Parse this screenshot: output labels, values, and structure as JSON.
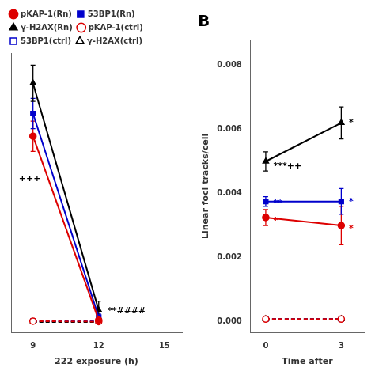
{
  "chart_data": [
    {
      "type": "line",
      "x_label": "222 exposure (h)",
      "xlim": [
        8.0,
        15.8
      ],
      "xticks": [
        9,
        12,
        15
      ],
      "ylim": [
        -0.0005,
        0.018
      ],
      "yticks": [],
      "tick_labels": "x",
      "grid": false,
      "legend": "upper left",
      "series": [
        {
          "name": "pKAP-1(Rn)",
          "color": "#dd0000",
          "line_style": "solid",
          "marker": "circle",
          "x": [
            9,
            12
          ],
          "values": [
            0.0125,
            0.00035
          ],
          "yerr_lo": [
            0.001,
            0.0002
          ],
          "yerr_hi": [
            0.001,
            0.0002
          ]
        },
        {
          "name": "53BP1(Rn)",
          "color": "#0000cc",
          "line_style": "solid",
          "marker": "square",
          "x": [
            9,
            12
          ],
          "values": [
            0.014,
            0.00055
          ],
          "yerr_lo": [
            0.001,
            0.0002
          ],
          "yerr_hi": [
            0.001,
            0.0002
          ]
        },
        {
          "name": "γ-H2AX(Rn)",
          "color": "#000000",
          "line_style": "solid",
          "marker": "triangle",
          "x": [
            9,
            12
          ],
          "values": [
            0.016,
            0.001
          ],
          "yerr_lo": [
            0.0012,
            0.0006
          ],
          "yerr_hi": [
            0.0012,
            0.0006
          ]
        },
        {
          "name": "pKAP-1(ctrl)",
          "color": "#dd0000",
          "line_style": "dashed",
          "marker": "circle",
          "x": [
            9,
            12
          ],
          "values": [
            0.00028,
            0.00025
          ],
          "yerr_lo": [
            8e-05,
            7e-05
          ],
          "yerr_hi": [
            8e-05,
            7e-05
          ]
        },
        {
          "name": "53BP1(ctrl)",
          "color": "#0000cc",
          "line_style": "dashed",
          "marker": "square",
          "x": [
            9,
            12
          ],
          "values": [
            0.00028,
            0.00028
          ],
          "yerr_lo": [
            7e-05,
            7e-05
          ],
          "yerr_hi": [
            7e-05,
            7e-05
          ]
        },
        {
          "name": "γ-H2AX(ctrl)",
          "color": "#000000",
          "line_style": "dashed",
          "marker": "triangle",
          "x": [
            9,
            12
          ],
          "values": [
            0.00022,
            0.00022
          ],
          "yerr_lo": [
            6e-05,
            6e-05
          ],
          "yerr_hi": [
            6e-05,
            6e-05
          ]
        }
      ],
      "annotations": [
        {
          "text": "**####",
          "x": 12.15,
          "y": 0.00095,
          "color": "#000000"
        },
        {
          "text": "+++",
          "x": 8.1,
          "y": 0.0097,
          "color": "#000000"
        }
      ]
    },
    {
      "type": "line",
      "title": "B",
      "x_label": "Time after",
      "y_label": "Linear foci tracks/cell",
      "xlim": [
        -0.6,
        3.9
      ],
      "xticks": [
        0,
        3
      ],
      "ylim": [
        -0.00035,
        0.0088
      ],
      "yticks": [
        {
          "value": 0,
          "label": "0.000"
        },
        0.002,
        0.004,
        0.006,
        0.008
      ],
      "grid": false,
      "series": [
        {
          "name": "pKAP-1(Rn)",
          "color": "#dd0000",
          "line_style": "solid",
          "marker": "circle",
          "x": [
            0,
            3
          ],
          "values": [
            0.00325,
            0.003
          ],
          "yerr_lo": [
            0.00025,
            0.0006
          ],
          "yerr_hi": [
            0.00025,
            0.0006
          ]
        },
        {
          "name": "53BP1(Rn)",
          "color": "#0000cc",
          "line_style": "solid",
          "marker": "square",
          "x": [
            0,
            3
          ],
          "values": [
            0.00375,
            0.00375
          ],
          "yerr_lo": [
            0.00015,
            0.0004
          ],
          "yerr_hi": [
            0.00015,
            0.0004
          ]
        },
        {
          "name": "γ-H2AX(Rn)",
          "color": "#000000",
          "line_style": "solid",
          "marker": "triangle",
          "x": [
            0,
            3
          ],
          "values": [
            0.005,
            0.0062
          ],
          "yerr_lo": [
            0.0003,
            0.0005
          ],
          "yerr_hi": [
            0.0003,
            0.0005
          ]
        },
        {
          "name": "pKAP-1(ctrl)",
          "color": "#dd0000",
          "line_style": "dashed",
          "marker": "circle",
          "x": [
            0,
            3
          ],
          "values": [
            8e-05,
            8e-05
          ],
          "yerr_lo": [
            3e-05,
            3e-05
          ],
          "yerr_hi": [
            3e-05,
            3e-05
          ]
        },
        {
          "name": "53BP1(ctrl)",
          "color": "#0000cc",
          "line_style": "dashed",
          "marker": "square",
          "x": [
            0,
            3
          ],
          "values": [
            8e-05,
            8e-05
          ],
          "yerr_lo": [
            3e-05,
            3e-05
          ],
          "yerr_hi": [
            3e-05,
            3e-05
          ]
        },
        {
          "name": "γ-H2AX(ctrl)",
          "color": "#000000",
          "line_style": "dashed",
          "marker": "triangle",
          "x": [
            0,
            3
          ],
          "values": [
            8e-05,
            8e-05
          ],
          "yerr_lo": [
            3e-05,
            3e-05
          ],
          "yerr_hi": [
            3e-05,
            3e-05
          ]
        }
      ],
      "annotations": [
        {
          "text": "***++",
          "x": 0.08,
          "y": 0.00485,
          "color": "#000000"
        },
        {
          "text": "**",
          "x": 0.08,
          "y": 0.00368,
          "color": "#0000cc"
        },
        {
          "text": "*",
          "x": 0.08,
          "y": 0.00315,
          "color": "#dd0000"
        },
        {
          "text": "*",
          "x": 3.08,
          "y": 0.0062,
          "color": "#000000"
        },
        {
          "text": "*",
          "x": 3.08,
          "y": 0.00375,
          "color": "#0000cc"
        },
        {
          "text": "*",
          "x": 3.08,
          "y": 0.0029,
          "color": "#dd0000"
        }
      ]
    }
  ]
}
